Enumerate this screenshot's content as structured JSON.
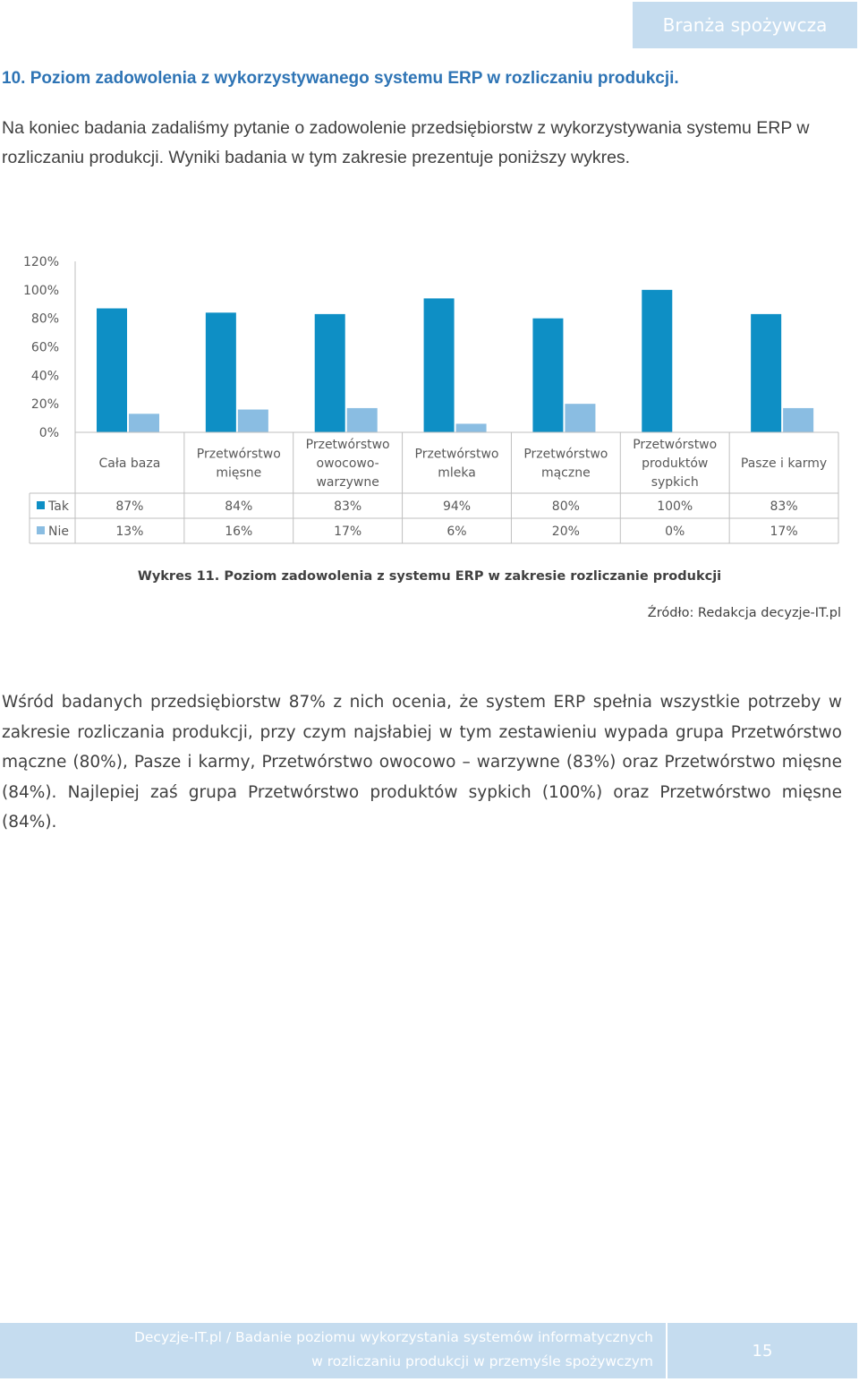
{
  "header": {
    "tab_label": "Branża spożywcza"
  },
  "section": {
    "heading": "10. Poziom zadowolenia z wykorzystywanego systemu ERP w rozliczaniu produkcji.",
    "intro": "Na koniec badania zadaliśmy pytanie o zadowolenie przedsiębiorstw z wykorzystywania systemu ERP w rozliczaniu produkcji. Wyniki badania w tym zakresie prezentuje poniższy wykres."
  },
  "chart_data": {
    "type": "bar",
    "categories": [
      [
        "Cała baza"
      ],
      [
        "Przetwórstwo",
        "mięsne"
      ],
      [
        "Przetwórstwo",
        "owocowo-",
        "warzywne"
      ],
      [
        "Przetwórstwo",
        "mleka"
      ],
      [
        "Przetwórstwo",
        "mączne"
      ],
      [
        "Przetwórstwo",
        "produktów",
        "sypkich"
      ],
      [
        "Pasze i karmy"
      ]
    ],
    "series": [
      {
        "name": "Tak",
        "color": "#0e8fc5",
        "values": [
          87,
          84,
          83,
          94,
          80,
          100,
          83
        ]
      },
      {
        "name": "Nie",
        "color": "#8abde2",
        "values": [
          13,
          16,
          17,
          6,
          20,
          0,
          17
        ]
      }
    ],
    "ylim": [
      0,
      120
    ],
    "yticks": [
      "120%",
      "100%",
      "80%",
      "60%",
      "40%",
      "20%",
      "0%"
    ],
    "value_suffix": "%",
    "grid": false,
    "legend": "data-table"
  },
  "caption": "Wykres 11. Poziom zadowolenia z systemu ERP w zakresie rozliczanie produkcji",
  "source": "Źródło: Redakcja decyzje-IT.pl",
  "body": "Wśród badanych przedsiębiorstw 87% z nich ocenia, że system ERP spełnia wszystkie potrzeby w zakresie rozliczania produkcji, przy czym najsłabiej w tym zestawieniu wypada grupa Przetwórstwo mączne (80%), Pasze i karmy, Przetwórstwo owocowo – warzywne (83%) oraz Przetwórstwo mięsne (84%). Najlepiej zaś grupa Przetwórstwo produktów sypkich (100%) oraz Przetwórstwo mięsne (84%).",
  "footer": {
    "line1": "Decyzje-IT.pl / Badanie poziomu wykorzystania systemów informatycznych",
    "line2": "w rozliczaniu produkcji w przemyśle spożywczym",
    "page_number": "15"
  }
}
